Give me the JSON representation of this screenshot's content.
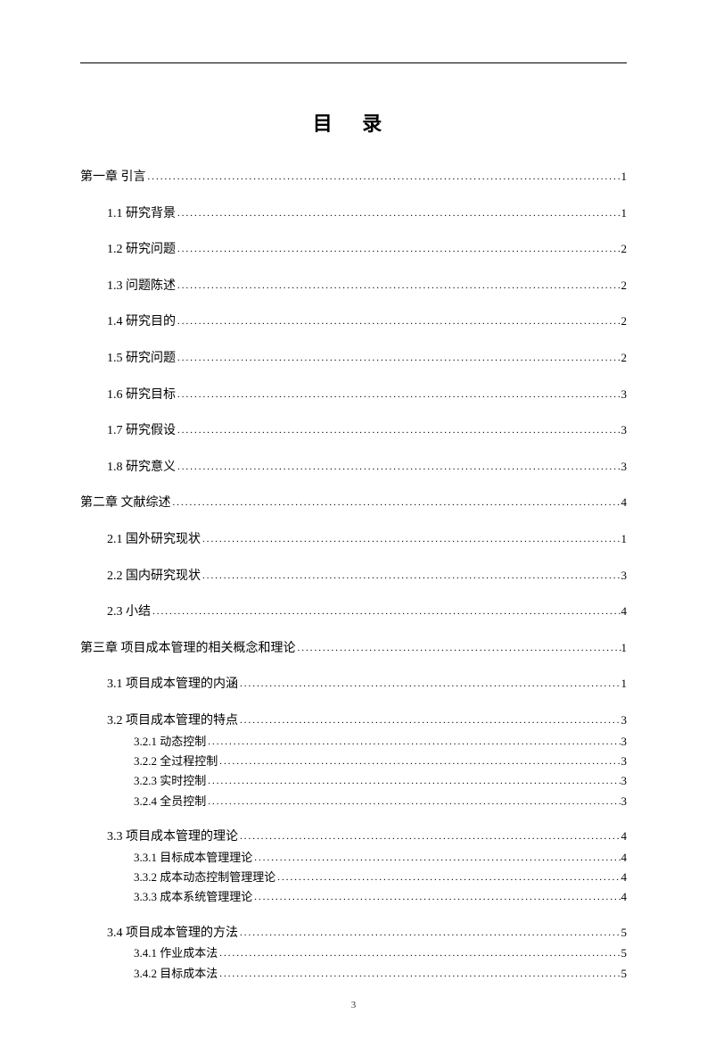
{
  "title": "目 录",
  "footer_page": "3",
  "entries": [
    {
      "level": 1,
      "label": "第一章 引言",
      "page": "1"
    },
    {
      "level": 2,
      "label": "1.1 研究背景",
      "page": "1"
    },
    {
      "level": 2,
      "label": "1.2 研究问题",
      "page": "2"
    },
    {
      "level": 2,
      "label": "1.3 问题陈述",
      "page": "2"
    },
    {
      "level": 2,
      "label": "1.4 研究目的",
      "page": "2"
    },
    {
      "level": 2,
      "label": "1.5 研究问题",
      "page": "2"
    },
    {
      "level": 2,
      "label": "1.6 研究目标",
      "page": "3"
    },
    {
      "level": 2,
      "label": "1.7 研究假设",
      "page": "3"
    },
    {
      "level": 2,
      "label": "1.8 研究意义",
      "page": "3"
    },
    {
      "level": 1,
      "label": "第二章 文献综述",
      "page": "4"
    },
    {
      "level": 2,
      "label": "2.1 国外研究现状",
      "page": "1"
    },
    {
      "level": 2,
      "label": "2.2 国内研究现状",
      "page": "3"
    },
    {
      "level": 2,
      "label": "2.3 小结",
      "page": "4"
    },
    {
      "level": 1,
      "label": "第三章  项目成本管理的相关概念和理论",
      "page": "1"
    },
    {
      "level": 2,
      "label": "3.1 项目成本管理的内涵",
      "page": "1"
    },
    {
      "level": 2,
      "label": "3.2 项目成本管理的特点",
      "page": "3"
    },
    {
      "level": 3,
      "label": "3.2.1 动态控制",
      "page": "3"
    },
    {
      "level": 3,
      "label": "3.2.2 全过程控制",
      "page": "3"
    },
    {
      "level": 3,
      "label": "3.2.3 实时控制",
      "page": "3"
    },
    {
      "level": 3,
      "label": "3.2.4 全员控制",
      "page": "3"
    },
    {
      "level": 2,
      "label": "3.3 项目成本管理的理论",
      "page": "4"
    },
    {
      "level": 3,
      "label": "3.3.1 目标成本管理理论",
      "page": "4"
    },
    {
      "level": 3,
      "label": "3.3.2 成本动态控制管理理论",
      "page": "4"
    },
    {
      "level": 3,
      "label": "3.3.3 成本系统管理理论",
      "page": "4"
    },
    {
      "level": 2,
      "label": "3.4 项目成本管理的方法",
      "page": "5"
    },
    {
      "level": 3,
      "label": "3.4.1 作业成本法",
      "page": "5"
    },
    {
      "level": 3,
      "label": "3.4.2 目标成本法",
      "page": "5"
    }
  ]
}
